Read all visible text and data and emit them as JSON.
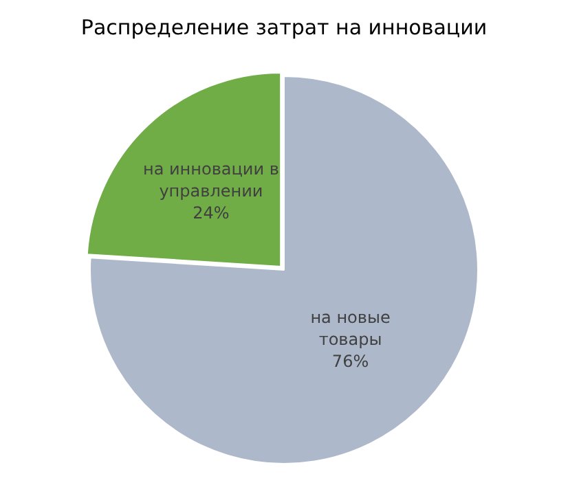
{
  "chart_data": {
    "type": "pie",
    "title": "Распределение затрат на инновации",
    "categories": [
      "на новые товары",
      "на инновации в управлении"
    ],
    "values": [
      76,
      24
    ],
    "colors": [
      "#adb9ca",
      "#70ad47"
    ],
    "value_labels": [
      "76%",
      "24%"
    ],
    "legend": false
  }
}
